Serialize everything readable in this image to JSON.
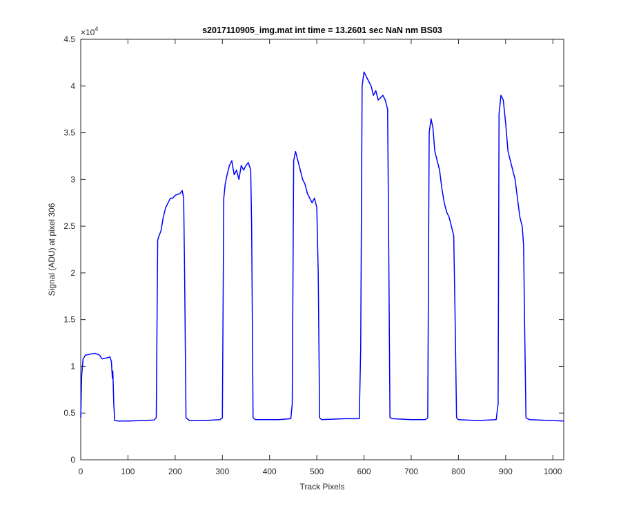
{
  "chart_data": {
    "type": "line",
    "title": "s2017110905_img.mat int time = 13.2601 sec  NaN nm BS03",
    "xlabel": "Track Pixels",
    "ylabel": "Signal (ADU) at pixel 306",
    "y_exponent": {
      "base": "×10",
      "power": "4"
    },
    "xlim": [
      0,
      1023
    ],
    "ylim": [
      0,
      4.5
    ],
    "xticks": [
      0,
      100,
      200,
      300,
      400,
      500,
      600,
      700,
      800,
      900,
      1000
    ],
    "yticks": [
      0,
      0.5,
      1,
      1.5,
      2,
      2.5,
      3,
      3.5,
      4,
      4.5
    ],
    "color": "#0000ff",
    "x": [
      0,
      2,
      5,
      10,
      20,
      30,
      40,
      45,
      55,
      62,
      65,
      67,
      68,
      70,
      72,
      80,
      100,
      130,
      155,
      160,
      163,
      166,
      170,
      175,
      180,
      185,
      190,
      195,
      200,
      210,
      215,
      218,
      220,
      223,
      230,
      260,
      295,
      300,
      303,
      306,
      310,
      315,
      320,
      325,
      330,
      335,
      340,
      345,
      350,
      355,
      360,
      362,
      365,
      370,
      420,
      445,
      448,
      451,
      455,
      460,
      465,
      470,
      475,
      480,
      485,
      490,
      495,
      500,
      503,
      506,
      510,
      560,
      590,
      593,
      596,
      600,
      605,
      610,
      615,
      620,
      625,
      630,
      640,
      645,
      650,
      652,
      655,
      660,
      700,
      730,
      735,
      738,
      742,
      746,
      750,
      755,
      760,
      765,
      770,
      775,
      780,
      785,
      790,
      793,
      796,
      800,
      840,
      880,
      884,
      886,
      890,
      895,
      900,
      905,
      910,
      915,
      920,
      925,
      930,
      935,
      938,
      940,
      943,
      950,
      1000,
      1023
    ],
    "values": [
      0.45,
      0.9,
      1.08,
      1.12,
      1.13,
      1.14,
      1.12,
      1.08,
      1.09,
      1.1,
      1.05,
      0.87,
      0.95,
      0.6,
      0.42,
      0.415,
      0.415,
      0.42,
      0.425,
      0.45,
      2.35,
      2.4,
      2.45,
      2.6,
      2.7,
      2.75,
      2.8,
      2.8,
      2.83,
      2.85,
      2.88,
      2.8,
      2.0,
      0.45,
      0.42,
      0.42,
      0.43,
      0.45,
      2.8,
      2.95,
      3.05,
      3.15,
      3.2,
      3.05,
      3.1,
      3.0,
      3.15,
      3.1,
      3.15,
      3.18,
      3.1,
      2.5,
      0.45,
      0.43,
      0.43,
      0.44,
      0.6,
      3.2,
      3.3,
      3.2,
      3.1,
      3.0,
      2.95,
      2.85,
      2.8,
      2.75,
      2.8,
      2.7,
      2.0,
      0.45,
      0.43,
      0.44,
      0.44,
      1.2,
      4.0,
      4.15,
      4.1,
      4.05,
      4.0,
      3.9,
      3.95,
      3.85,
      3.9,
      3.85,
      3.75,
      2.5,
      0.45,
      0.44,
      0.43,
      0.43,
      0.45,
      3.5,
      3.65,
      3.55,
      3.3,
      3.2,
      3.1,
      2.9,
      2.75,
      2.65,
      2.6,
      2.5,
      2.4,
      1.5,
      0.45,
      0.43,
      0.42,
      0.43,
      0.6,
      3.7,
      3.9,
      3.85,
      3.6,
      3.3,
      3.2,
      3.1,
      3.0,
      2.8,
      2.6,
      2.5,
      2.3,
      1.5,
      0.45,
      0.43,
      0.42,
      0.415
    ]
  }
}
